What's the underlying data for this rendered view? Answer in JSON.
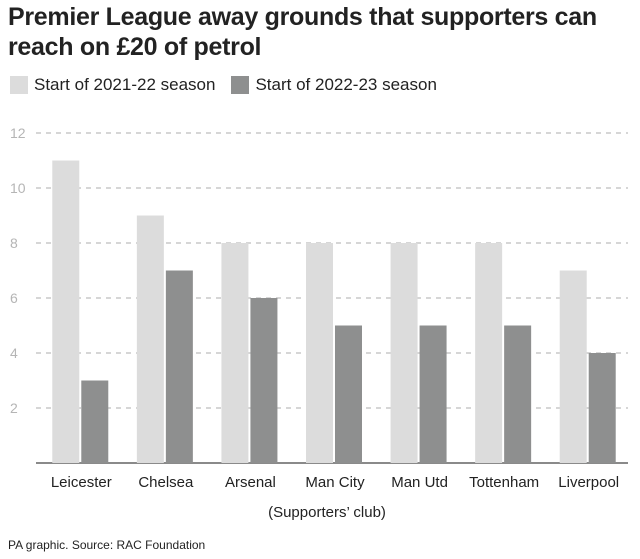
{
  "chart_data": {
    "type": "bar",
    "title": "Premier League away grounds that supporters can reach on £20 of petrol",
    "categories": [
      "Leicester",
      "Chelsea",
      "Arsenal",
      "Man City",
      "Man Utd",
      "Tottenham",
      "Liverpool"
    ],
    "series": [
      {
        "name": "Start of 2021-22 season",
        "values": [
          11,
          9,
          8,
          8,
          8,
          8,
          7
        ],
        "color": "#dcdcdc"
      },
      {
        "name": "Start of 2022-23 season",
        "values": [
          3,
          7,
          6,
          5,
          5,
          5,
          4
        ],
        "color": "#8e8f8f"
      }
    ],
    "xlabel": "(Supporters’ club)",
    "ylabel": "",
    "ylim": [
      0,
      12
    ],
    "yticks": [
      2,
      4,
      6,
      8,
      10,
      12
    ],
    "grid": true,
    "legend_position": "top-left"
  },
  "footer": {
    "source": "PA graphic. Source: RAC Foundation"
  }
}
